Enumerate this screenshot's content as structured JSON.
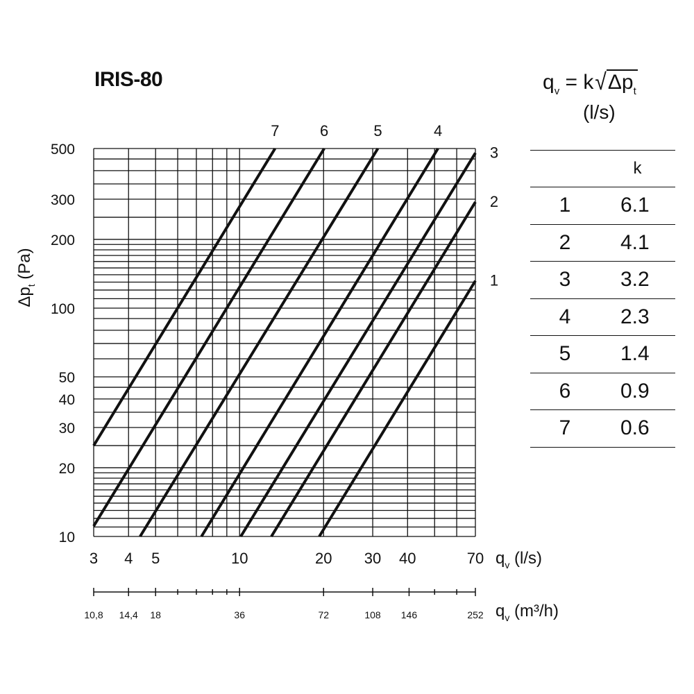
{
  "title": "IRIS-80",
  "formula": {
    "lhs": "q",
    "lhs_sub": "v",
    "eq": " = k",
    "radicand": "Δp",
    "radicand_sub": "t",
    "units": "(l/s)"
  },
  "k_table": {
    "header": "k",
    "rows": [
      {
        "curve": "1",
        "k": "6.1"
      },
      {
        "curve": "2",
        "k": "4.1"
      },
      {
        "curve": "3",
        "k": "3.2"
      },
      {
        "curve": "4",
        "k": "2.3"
      },
      {
        "curve": "5",
        "k": "1.4"
      },
      {
        "curve": "6",
        "k": "0.9"
      },
      {
        "curve": "7",
        "k": "0.6"
      }
    ]
  },
  "chart_data": {
    "type": "line",
    "title": "IRIS-80",
    "xscale": "log",
    "yscale": "log",
    "xlim": [
      3,
      70
    ],
    "ylim": [
      10,
      500
    ],
    "xlabel": "q",
    "xlabel_sub": "v",
    "xlabel_unit": "(l/s)",
    "ylabel": "Δp",
    "ylabel_sub": "t",
    "ylabel_unit": "(Pa)",
    "x_ticks": [
      "3",
      "4",
      "5",
      "10",
      "20",
      "30",
      "40",
      "70"
    ],
    "x_tick_values": [
      3,
      4,
      5,
      10,
      20,
      30,
      40,
      70
    ],
    "y_ticks": [
      "10",
      "20",
      "30",
      "40",
      "50",
      "100",
      "200",
      "300",
      "500"
    ],
    "y_tick_values": [
      10,
      20,
      30,
      40,
      50,
      100,
      200,
      300,
      500
    ],
    "x_grid_values": [
      3,
      4,
      5,
      6,
      7,
      8,
      9,
      10,
      20,
      30,
      40,
      50,
      60,
      70
    ],
    "y_grid_values": [
      10,
      11,
      12,
      13,
      14,
      15,
      16,
      17,
      18,
      19,
      20,
      25,
      30,
      35,
      40,
      45,
      50,
      60,
      70,
      80,
      90,
      100,
      110,
      120,
      130,
      140,
      150,
      160,
      170,
      180,
      190,
      200,
      250,
      300,
      350,
      400,
      450,
      500
    ],
    "grid": true,
    "secondary_x": {
      "label": "q",
      "label_sub": "v",
      "label_unit": "(m³/h)",
      "ticks": [
        "10,8",
        "14,4",
        "18",
        "36",
        "72",
        "108",
        "146",
        "252"
      ],
      "tick_values_ls": [
        3,
        4,
        5,
        10,
        20,
        30,
        40.5,
        70
      ],
      "minor_values_ls": [
        6,
        7,
        8,
        9,
        50,
        60
      ]
    },
    "series": [
      {
        "name": "1",
        "k": 6.1,
        "points": [
          [
            19.3,
            10
          ],
          [
            70,
            131.7
          ]
        ]
      },
      {
        "name": "2",
        "k": 4.1,
        "points": [
          [
            13,
            10
          ],
          [
            70,
            291.5
          ]
        ]
      },
      {
        "name": "3",
        "k": 3.2,
        "points": [
          [
            10.1,
            10
          ],
          [
            71.6,
            500
          ]
        ]
      },
      {
        "name": "4",
        "k": 2.3,
        "points": [
          [
            7.3,
            10
          ],
          [
            51.4,
            500
          ]
        ]
      },
      {
        "name": "5",
        "k": 1.4,
        "points": [
          [
            4.4,
            10
          ],
          [
            31.3,
            500
          ]
        ]
      },
      {
        "name": "6",
        "k": 0.9,
        "points": [
          [
            3,
            11.1
          ],
          [
            20.1,
            500
          ]
        ]
      },
      {
        "name": "7",
        "k": 0.6,
        "points": [
          [
            3,
            25
          ],
          [
            13.4,
            500
          ]
        ]
      }
    ]
  }
}
